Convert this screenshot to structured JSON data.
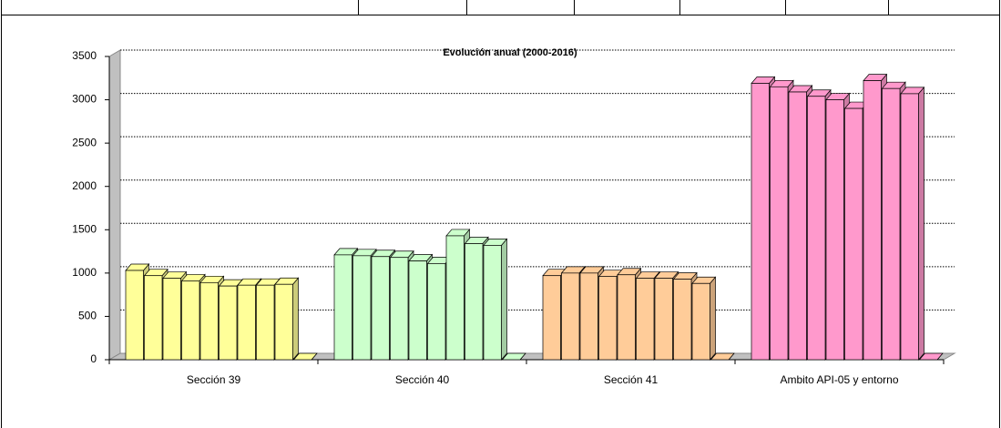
{
  "chart_data": {
    "type": "bar3d",
    "title": "Evolución anual (2000-2016)",
    "categories": [
      "Sección 39",
      "Sección 40",
      "Sección 41",
      "Ambito API-05 y entorno"
    ],
    "colors": [
      "#ffff99",
      "#ccffcc",
      "#ffcc99",
      "#ff99cc"
    ],
    "values": [
      [
        1030,
        970,
        940,
        910,
        890,
        850,
        860,
        860,
        870,
        0
      ],
      [
        1210,
        1200,
        1190,
        1180,
        1140,
        1110,
        1430,
        1340,
        1320,
        0
      ],
      [
        970,
        1000,
        1000,
        960,
        980,
        940,
        940,
        930,
        880,
        0
      ],
      [
        3190,
        3150,
        3090,
        3040,
        3000,
        2900,
        3220,
        3130,
        3070,
        0
      ]
    ],
    "ylim": [
      0,
      3500
    ],
    "yticks": [
      0,
      500,
      1000,
      1500,
      2000,
      2500,
      3000,
      3500
    ],
    "grid": true
  }
}
